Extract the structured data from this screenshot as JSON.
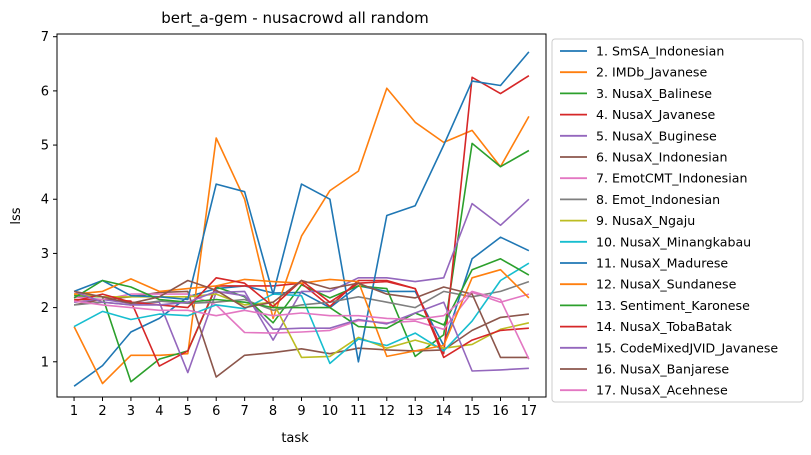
{
  "chart_data": {
    "type": "line",
    "title": "bert_a-gem - nusacrowd all random",
    "xlabel": "task",
    "ylabel": "lss",
    "x": [
      1,
      2,
      3,
      4,
      5,
      6,
      7,
      8,
      9,
      10,
      11,
      12,
      13,
      14,
      15,
      16,
      17
    ],
    "xlim": [
      0.4,
      17.6
    ],
    "ylim": [
      0.35,
      7.05
    ],
    "yticks": [
      1,
      2,
      3,
      4,
      5,
      6,
      7
    ],
    "grid": false,
    "legend_position": "outside right",
    "series": [
      {
        "name": "1. SmSA_Indonesian",
        "color": "#1f77b4",
        "values": [
          0.55,
          0.93,
          1.55,
          1.8,
          2.2,
          2.35,
          2.4,
          2.27,
          2.28,
          2.0,
          2.4,
          2.3,
          2.3,
          1.3,
          2.9,
          3.3,
          3.05
        ]
      },
      {
        "name": "2. IMDb_Javanese",
        "color": "#ff7f0e",
        "values": [
          1.65,
          0.6,
          1.12,
          1.12,
          1.15,
          5.13,
          4.0,
          1.8,
          3.32,
          4.16,
          4.52,
          6.05,
          5.42,
          5.05,
          5.27,
          4.6,
          5.53
        ]
      },
      {
        "name": "3. NusaX_Balinese",
        "color": "#2ca02c",
        "values": [
          2.22,
          2.2,
          0.63,
          1.05,
          1.2,
          2.38,
          2.2,
          1.72,
          2.42,
          2.18,
          2.4,
          2.35,
          1.1,
          1.5,
          5.03,
          4.6,
          4.9
        ]
      },
      {
        "name": "4. NusaX_Javanese",
        "color": "#d62728",
        "values": [
          2.15,
          2.15,
          2.12,
          0.92,
          1.2,
          2.4,
          2.4,
          2.4,
          2.45,
          2.02,
          2.5,
          2.5,
          2.35,
          1.15,
          6.25,
          5.95,
          6.28
        ]
      },
      {
        "name": "5. NusaX_Buginese",
        "color": "#9467bd",
        "values": [
          2.1,
          2.15,
          2.08,
          2.1,
          0.8,
          2.28,
          2.3,
          1.4,
          2.3,
          2.3,
          2.55,
          2.55,
          2.48,
          2.55,
          3.92,
          3.52,
          4.0
        ]
      },
      {
        "name": "6. NusaX_Indonesian",
        "color": "#8c564b",
        "values": [
          2.05,
          2.15,
          2.2,
          2.28,
          2.3,
          0.72,
          1.12,
          1.17,
          1.24,
          1.15,
          1.25,
          1.22,
          1.2,
          1.22,
          1.58,
          1.82,
          1.88
        ]
      },
      {
        "name": "7. EmotCMT_Indonesian",
        "color": "#e377c2",
        "values": [
          2.2,
          2.15,
          2.25,
          2.25,
          2.25,
          2.05,
          1.54,
          1.53,
          1.55,
          1.58,
          1.76,
          1.72,
          1.75,
          1.6,
          2.28,
          2.1,
          2.25
        ]
      },
      {
        "name": "8. Emot_Indonesian",
        "color": "#7f7f7f",
        "values": [
          2.05,
          2.1,
          2.05,
          2.12,
          2.08,
          2.1,
          2.15,
          1.95,
          2.05,
          2.1,
          2.2,
          2.1,
          2.0,
          2.3,
          2.2,
          2.3,
          2.48
        ]
      },
      {
        "name": "9. NusaX_Ngaju",
        "color": "#bcbd22",
        "values": [
          2.25,
          2.2,
          2.2,
          2.2,
          2.2,
          2.25,
          2.05,
          2.1,
          1.08,
          1.1,
          1.45,
          1.25,
          1.4,
          1.25,
          1.32,
          1.6,
          1.72
        ]
      },
      {
        "name": "10. NusaX_Minangkabau",
        "color": "#17becf",
        "values": [
          1.65,
          1.93,
          1.78,
          1.88,
          1.85,
          2.05,
          1.98,
          2.25,
          2.22,
          0.97,
          1.42,
          1.3,
          1.53,
          1.2,
          1.75,
          2.5,
          2.82
        ]
      },
      {
        "name": "11. NusaX_Madurese",
        "color": "#1f77b4",
        "values": [
          2.3,
          2.5,
          2.22,
          2.2,
          2.15,
          4.28,
          4.14,
          2.25,
          4.28,
          4.0,
          1.0,
          3.7,
          3.88,
          5.0,
          6.18,
          6.1,
          6.72
        ]
      },
      {
        "name": "12. NusaX_Sundanese",
        "color": "#ff7f0e",
        "values": [
          2.25,
          2.3,
          2.53,
          2.3,
          2.35,
          2.4,
          2.52,
          2.48,
          2.45,
          2.52,
          2.48,
          1.1,
          1.2,
          1.3,
          2.55,
          2.7,
          2.18
        ]
      },
      {
        "name": "13. Sentiment_Karonese",
        "color": "#2ca02c",
        "values": [
          2.18,
          2.5,
          2.38,
          2.15,
          2.1,
          2.15,
          2.1,
          2.0,
          2.0,
          2.0,
          1.65,
          1.62,
          1.9,
          1.68,
          2.7,
          2.9,
          2.6
        ]
      },
      {
        "name": "14. NusaX_TobaBatak",
        "color": "#d62728",
        "values": [
          2.12,
          2.25,
          2.1,
          2.05,
          2.0,
          2.55,
          2.45,
          2.02,
          2.5,
          2.1,
          2.45,
          2.48,
          2.35,
          1.08,
          1.4,
          1.58,
          1.62
        ]
      },
      {
        "name": "15. CodeMixedJVID_Javanese",
        "color": "#9467bd",
        "values": [
          2.3,
          2.1,
          2.05,
          2.05,
          2.1,
          2.3,
          2.22,
          1.6,
          1.62,
          1.62,
          1.78,
          1.7,
          1.9,
          2.1,
          0.83,
          0.85,
          0.88
        ]
      },
      {
        "name": "16. NusaX_Banjarese",
        "color": "#8c564b",
        "values": [
          2.3,
          2.2,
          2.08,
          2.2,
          2.5,
          2.32,
          2.0,
          2.1,
          2.5,
          2.35,
          2.45,
          2.25,
          2.18,
          2.38,
          2.25,
          1.08,
          1.08
        ]
      },
      {
        "name": "17. NusaX_Acehnese",
        "color": "#e377c2",
        "values": [
          2.12,
          2.05,
          2.0,
          1.95,
          1.95,
          1.85,
          1.95,
          1.85,
          1.9,
          1.85,
          1.85,
          1.8,
          1.78,
          1.85,
          2.3,
          2.15,
          1.05
        ]
      }
    ]
  }
}
